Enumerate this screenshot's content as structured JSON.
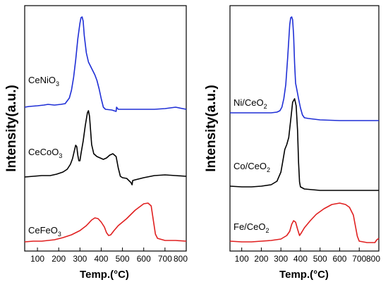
{
  "chart_data": [
    {
      "type": "line",
      "xlabel": "Temp.(°C)",
      "ylabel": "Intensity(a.u.)",
      "xlim": [
        40,
        800
      ],
      "x_ticks": [
        100,
        200,
        300,
        400,
        500,
        600,
        700,
        800
      ],
      "y_ticks": [],
      "grid": false,
      "series": [
        {
          "label": "CeNiO",
          "label_subscript": "3",
          "color": "#1f2fd6",
          "points": [
            [
              40,
              152
            ],
            [
              60,
              151
            ],
            [
              100,
              150
            ],
            [
              130,
              149
            ],
            [
              150,
              148
            ],
            [
              180,
              149
            ],
            [
              210,
              148
            ],
            [
              230,
              147
            ],
            [
              240,
              143
            ],
            [
              250,
              139
            ],
            [
              260,
              128
            ],
            [
              270,
              110
            ],
            [
              280,
              85
            ],
            [
              290,
              55
            ],
            [
              300,
              33
            ],
            [
              305,
              25
            ],
            [
              310,
              24
            ],
            [
              315,
              30
            ],
            [
              320,
              50
            ],
            [
              330,
              75
            ],
            [
              340,
              88
            ],
            [
              350,
              94
            ],
            [
              360,
              100
            ],
            [
              370,
              106
            ],
            [
              380,
              114
            ],
            [
              390,
              126
            ],
            [
              400,
              140
            ],
            [
              410,
              152
            ],
            [
              420,
              155
            ],
            [
              450,
              156
            ],
            [
              470,
              158
            ],
            [
              472,
              152
            ],
            [
              480,
              155
            ],
            [
              500,
              155
            ],
            [
              550,
              155
            ],
            [
              600,
              155
            ],
            [
              650,
              155
            ],
            [
              700,
              154
            ],
            [
              750,
              152
            ],
            [
              800,
              155
            ]
          ]
        },
        {
          "label": "CeCoO",
          "label_subscript": "3",
          "color": "#000000",
          "points": [
            [
              40,
              251
            ],
            [
              80,
              250
            ],
            [
              120,
              249
            ],
            [
              160,
              249
            ],
            [
              190,
              247
            ],
            [
              220,
              244
            ],
            [
              240,
              240
            ],
            [
              255,
              233
            ],
            [
              265,
              225
            ],
            [
              275,
              212
            ],
            [
              280,
              206
            ],
            [
              285,
              208
            ],
            [
              290,
              220
            ],
            [
              295,
              228
            ],
            [
              300,
              228
            ],
            [
              305,
              218
            ],
            [
              315,
              200
            ],
            [
              325,
              178
            ],
            [
              335,
              160
            ],
            [
              340,
              157
            ],
            [
              345,
              165
            ],
            [
              350,
              185
            ],
            [
              355,
              205
            ],
            [
              365,
              218
            ],
            [
              380,
              222
            ],
            [
              395,
              224
            ],
            [
              410,
              226
            ],
            [
              425,
              224
            ],
            [
              440,
              220
            ],
            [
              455,
              218
            ],
            [
              470,
              222
            ],
            [
              480,
              238
            ],
            [
              490,
              250
            ],
            [
              500,
              252
            ],
            [
              520,
              253
            ],
            [
              540,
              259
            ],
            [
              545,
              262
            ],
            [
              548,
              256
            ],
            [
              560,
              255
            ],
            [
              600,
              252
            ],
            [
              650,
              249
            ],
            [
              700,
              248
            ],
            [
              750,
              249
            ],
            [
              800,
              250
            ]
          ]
        },
        {
          "label": "CeFeO",
          "label_subscript": "3",
          "color": "#e02020",
          "points": [
            [
              40,
              343
            ],
            [
              80,
              342
            ],
            [
              120,
              342
            ],
            [
              150,
              341
            ],
            [
              180,
              340
            ],
            [
              220,
              337
            ],
            [
              260,
              333
            ],
            [
              300,
              327
            ],
            [
              330,
              320
            ],
            [
              355,
              312
            ],
            [
              370,
              309
            ],
            [
              385,
              310
            ],
            [
              400,
              315
            ],
            [
              415,
              322
            ],
            [
              425,
              330
            ],
            [
              435,
              334
            ],
            [
              445,
              333
            ],
            [
              460,
              327
            ],
            [
              480,
              320
            ],
            [
              520,
              310
            ],
            [
              560,
              298
            ],
            [
              600,
              289
            ],
            [
              620,
              288
            ],
            [
              635,
              292
            ],
            [
              645,
              312
            ],
            [
              655,
              332
            ],
            [
              665,
              338
            ],
            [
              700,
              341
            ],
            [
              750,
              341
            ],
            [
              800,
              342
            ]
          ]
        }
      ]
    },
    {
      "type": "line",
      "xlabel": "Temp.(°C)",
      "ylabel": "Intensity(a.u.)",
      "xlim": [
        40,
        800
      ],
      "x_ticks": [
        100,
        200,
        300,
        400,
        500,
        600,
        700,
        800
      ],
      "y_ticks": [],
      "grid": false,
      "series": [
        {
          "label": "Ni/CeO",
          "label_subscript": "2",
          "color": "#1f2fd6",
          "points": [
            [
              40,
              160
            ],
            [
              100,
              160
            ],
            [
              150,
              160
            ],
            [
              200,
              160
            ],
            [
              250,
              160
            ],
            [
              280,
              159
            ],
            [
              295,
              157
            ],
            [
              305,
              152
            ],
            [
              315,
              140
            ],
            [
              325,
              120
            ],
            [
              335,
              80
            ],
            [
              345,
              35
            ],
            [
              350,
              25
            ],
            [
              355,
              24
            ],
            [
              360,
              28
            ],
            [
              365,
              50
            ],
            [
              370,
              90
            ],
            [
              375,
              118
            ],
            [
              380,
              125
            ],
            [
              390,
              140
            ],
            [
              400,
              153
            ],
            [
              410,
              163
            ],
            [
              420,
              167
            ],
            [
              440,
              168
            ],
            [
              500,
              170
            ],
            [
              600,
              171
            ],
            [
              700,
              171
            ],
            [
              800,
              171
            ]
          ]
        },
        {
          "label": "Co/CeO",
          "label_subscript": "2",
          "color": "#000000",
          "points": [
            [
              40,
              264
            ],
            [
              100,
              265
            ],
            [
              150,
              265
            ],
            [
              200,
              264
            ],
            [
              250,
              262
            ],
            [
              280,
              257
            ],
            [
              300,
              244
            ],
            [
              310,
              228
            ],
            [
              320,
              212
            ],
            [
              330,
              205
            ],
            [
              340,
              195
            ],
            [
              350,
              170
            ],
            [
              360,
              145
            ],
            [
              370,
              140
            ],
            [
              378,
              150
            ],
            [
              385,
              185
            ],
            [
              390,
              230
            ],
            [
              395,
              258
            ],
            [
              400,
              265
            ],
            [
              420,
              268
            ],
            [
              500,
              270
            ],
            [
              600,
              270
            ],
            [
              700,
              270
            ],
            [
              800,
              270
            ]
          ]
        },
        {
          "label": "Fe/CeO",
          "label_subscript": "2",
          "color": "#e02020",
          "points": [
            [
              40,
              342
            ],
            [
              100,
              343
            ],
            [
              150,
              343
            ],
            [
              200,
              342
            ],
            [
              250,
              341
            ],
            [
              300,
              339
            ],
            [
              330,
              334
            ],
            [
              345,
              328
            ],
            [
              355,
              318
            ],
            [
              365,
              313
            ],
            [
              375,
              315
            ],
            [
              385,
              325
            ],
            [
              395,
              334
            ],
            [
              405,
              330
            ],
            [
              420,
              323
            ],
            [
              450,
              313
            ],
            [
              480,
              304
            ],
            [
              520,
              296
            ],
            [
              560,
              290
            ],
            [
              600,
              288
            ],
            [
              630,
              290
            ],
            [
              650,
              294
            ],
            [
              670,
              305
            ],
            [
              680,
              320
            ],
            [
              690,
              335
            ],
            [
              700,
              342
            ],
            [
              740,
              344
            ],
            [
              780,
              344
            ],
            [
              790,
              340
            ],
            [
              800,
              338
            ]
          ]
        }
      ]
    }
  ]
}
